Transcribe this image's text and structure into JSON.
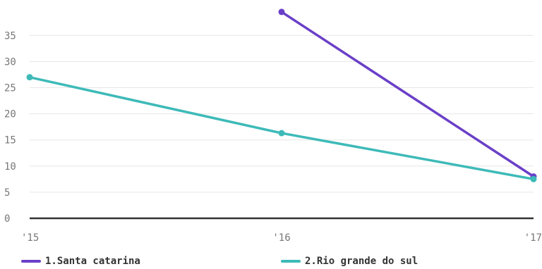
{
  "chart_data": {
    "type": "line",
    "categories": [
      "'15",
      "'16",
      "'17"
    ],
    "y_ticks": [
      "0",
      "5",
      "10",
      "15",
      "20",
      "25",
      "30",
      "35"
    ],
    "ylim": [
      0,
      40
    ],
    "grid": true,
    "legend_position": "bottom",
    "series": [
      {
        "name": "1.Santa catarina",
        "color": "#6a3fc8",
        "values": [
          null,
          39.5,
          8.0
        ]
      },
      {
        "name": "2.Rio grande do sul",
        "color": "#3dbab8",
        "values": [
          27.0,
          16.3,
          7.5
        ]
      }
    ]
  }
}
